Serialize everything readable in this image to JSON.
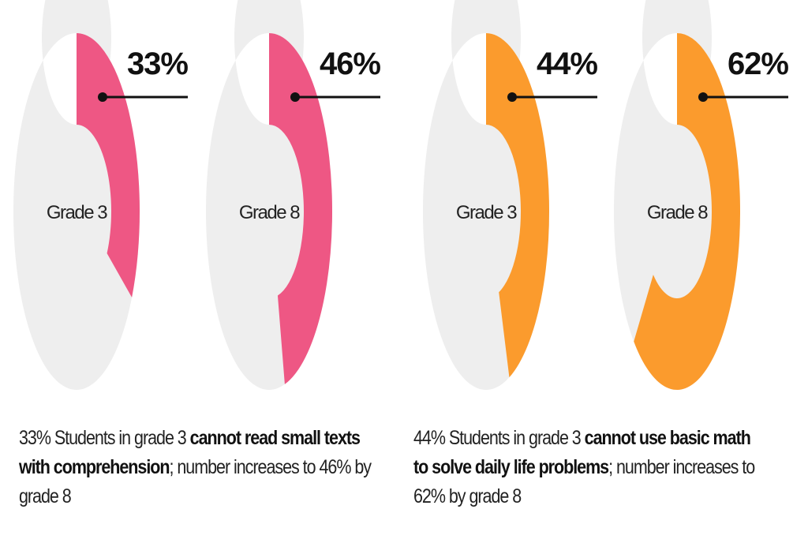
{
  "colors": {
    "reading": "#ee5784",
    "math": "#fb9b2d",
    "track": "#eeeeee",
    "pointer": "#111111"
  },
  "chart_data": [
    {
      "type": "pie",
      "variant": "donut",
      "subject": "reading",
      "categories": [
        "Grade 3",
        "Grade 8"
      ],
      "values": [
        33,
        46
      ],
      "labels": [
        "33%",
        "46%"
      ],
      "unit": "%"
    },
    {
      "type": "pie",
      "variant": "donut",
      "subject": "math",
      "categories": [
        "Grade 3",
        "Grade 8"
      ],
      "values": [
        44,
        62
      ],
      "labels": [
        "44%",
        "62%"
      ],
      "unit": "%"
    }
  ],
  "captions": {
    "reading": {
      "pre": "33% Students in grade 3 ",
      "bold1": "cannot read small texts with comprehension",
      "post": "; number increases to 46% by grade 8"
    },
    "math": {
      "pre": "44% Students in grade 3 ",
      "bold1": "cannot use basic math to solve daily life problems",
      "post": "; number increases to 62% by grade 8"
    }
  }
}
